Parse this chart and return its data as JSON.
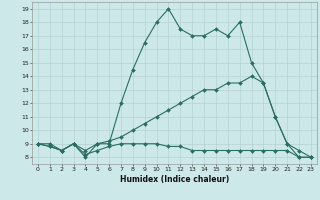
{
  "xlabel": "Humidex (Indice chaleur)",
  "bg_color": "#cce8e8",
  "line_color": "#2a6e62",
  "grid_color": "#b0cccc",
  "xlim": [
    -0.5,
    23.5
  ],
  "ylim": [
    7.5,
    19.5
  ],
  "xticks": [
    0,
    1,
    2,
    3,
    4,
    5,
    6,
    7,
    8,
    9,
    10,
    11,
    12,
    13,
    14,
    15,
    16,
    17,
    18,
    19,
    20,
    21,
    22,
    23
  ],
  "yticks": [
    8,
    9,
    10,
    11,
    12,
    13,
    14,
    15,
    16,
    17,
    18,
    19
  ],
  "series": [
    {
      "x": [
        0,
        1,
        2,
        3,
        4,
        5,
        6,
        7,
        8,
        9,
        10,
        11,
        12,
        13,
        14,
        15,
        16,
        17,
        18,
        19,
        20,
        21,
        22,
        23
      ],
      "y": [
        9,
        9,
        8.5,
        9,
        8,
        9,
        9,
        12,
        14.5,
        16.5,
        18,
        19,
        17.5,
        17,
        17,
        17.5,
        17,
        18,
        15,
        13.5,
        11,
        9,
        8,
        8
      ]
    },
    {
      "x": [
        0,
        1,
        2,
        3,
        4,
        5,
        6,
        7,
        8,
        9,
        10,
        11,
        12,
        13,
        14,
        15,
        16,
        17,
        18,
        19,
        20,
        21,
        22,
        23
      ],
      "y": [
        9,
        8.8,
        8.5,
        9,
        8.5,
        9,
        9.2,
        9.5,
        10,
        10.5,
        11,
        11.5,
        12,
        12.5,
        13,
        13,
        13.5,
        13.5,
        14,
        13.5,
        11,
        9,
        8.5,
        8
      ]
    },
    {
      "x": [
        0,
        1,
        2,
        3,
        4,
        5,
        6,
        7,
        8,
        9,
        10,
        11,
        12,
        13,
        14,
        15,
        16,
        17,
        18,
        19,
        20,
        21,
        22,
        23
      ],
      "y": [
        9,
        8.8,
        8.5,
        9,
        8.2,
        8.5,
        8.8,
        9,
        9,
        9,
        9,
        8.8,
        8.8,
        8.5,
        8.5,
        8.5,
        8.5,
        8.5,
        8.5,
        8.5,
        8.5,
        8.5,
        8,
        8
      ]
    }
  ]
}
